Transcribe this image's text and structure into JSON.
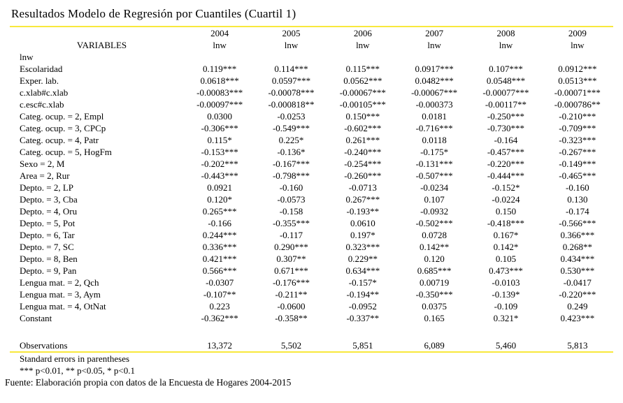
{
  "title": "Resultados Modelo de Regresión por Cuantiles (Cuartil 1)",
  "table": {
    "years": [
      "2004",
      "2005",
      "2006",
      "2007",
      "2008",
      "2009"
    ],
    "variables_header": "VARIABLES",
    "dep_var_label": "lnw",
    "group_label": "lnw",
    "rows": [
      {
        "label": "Escolaridad",
        "values": [
          "0.119***",
          "0.114***",
          "0.115***",
          "0.0917***",
          "0.107***",
          "0.0912***"
        ]
      },
      {
        "label": "Exper. lab.",
        "values": [
          "0.0618***",
          "0.0597***",
          "0.0562***",
          "0.0482***",
          "0.0548***",
          "0.0513***"
        ]
      },
      {
        "label": "c.xlab#c.xlab",
        "values": [
          "-0.00083***",
          "-0.00078***",
          "-0.00067***",
          "-0.00067***",
          "-0.00077***",
          "-0.00071***"
        ]
      },
      {
        "label": "c.esc#c.xlab",
        "values": [
          "-0.00097***",
          "-0.000818**",
          "-0.00105***",
          "-0.000373",
          "-0.00117**",
          "-0.000786**"
        ]
      },
      {
        "label": "Categ. ocup. = 2, Empl",
        "values": [
          "0.0300",
          "-0.0253",
          "0.150***",
          "0.0181",
          "-0.250***",
          "-0.210***"
        ]
      },
      {
        "label": "Categ. ocup. = 3, CPCp",
        "values": [
          "-0.306***",
          "-0.549***",
          "-0.602***",
          "-0.716***",
          "-0.730***",
          "-0.709***"
        ]
      },
      {
        "label": "Categ. ocup. = 4, Patr",
        "values": [
          "0.115*",
          "0.225*",
          "0.261***",
          "0.0118",
          "-0.164",
          "-0.323***"
        ]
      },
      {
        "label": "Categ. ocup. = 5, HogFm",
        "values": [
          "-0.153***",
          "-0.136*",
          "-0.240***",
          "-0.175*",
          "-0.457***",
          "-0.267***"
        ]
      },
      {
        "label": "Sexo = 2, M",
        "values": [
          "-0.202***",
          "-0.167***",
          "-0.254***",
          "-0.131***",
          "-0.220***",
          "-0.149***"
        ]
      },
      {
        "label": "Area = 2, Rur",
        "values": [
          "-0.443***",
          "-0.798***",
          "-0.260***",
          "-0.507***",
          "-0.444***",
          "-0.465***"
        ]
      },
      {
        "label": "Depto. = 2, LP",
        "values": [
          "0.0921",
          "-0.160",
          "-0.0713",
          "-0.0234",
          "-0.152*",
          "-0.160"
        ]
      },
      {
        "label": "Depto. = 3, Cba",
        "values": [
          "0.120*",
          "-0.0573",
          "0.267***",
          "0.107",
          "-0.0224",
          "0.130"
        ]
      },
      {
        "label": "Depto. = 4, Oru",
        "values": [
          "0.265***",
          "-0.158",
          "-0.193**",
          "-0.0932",
          "0.150",
          "-0.174"
        ]
      },
      {
        "label": "Depto. = 5, Pot",
        "values": [
          "-0.166",
          "-0.355***",
          "0.0610",
          "-0.502***",
          "-0.418***",
          "-0.566***"
        ]
      },
      {
        "label": "Depto. = 6, Tar",
        "values": [
          "0.244***",
          "-0.117",
          "0.197*",
          "0.0728",
          "0.167*",
          "0.366***"
        ]
      },
      {
        "label": "Depto. = 7, SC",
        "values": [
          "0.336***",
          "0.290***",
          "0.323***",
          "0.142**",
          "0.142*",
          "0.268**"
        ]
      },
      {
        "label": "Depto. = 8, Ben",
        "values": [
          "0.421***",
          "0.307**",
          "0.229**",
          "0.120",
          "0.105",
          "0.434***"
        ]
      },
      {
        "label": "Depto. = 9, Pan",
        "values": [
          "0.566***",
          "0.671***",
          "0.634***",
          "0.685***",
          "0.473***",
          "0.530***"
        ]
      },
      {
        "label": "Lengua mat. = 2, Qch",
        "values": [
          "-0.0307",
          "-0.176***",
          "-0.157*",
          "0.00719",
          "-0.0103",
          "-0.0417"
        ]
      },
      {
        "label": "Lengua mat. = 3, Aym",
        "values": [
          "-0.107**",
          "-0.211**",
          "-0.194**",
          "-0.350***",
          "-0.139*",
          "-0.220***"
        ]
      },
      {
        "label": "Lengua mat. = 4, OtNat",
        "values": [
          "0.223",
          "-0.0600",
          "-0.0952",
          "0.0375",
          "-0.109",
          "0.249"
        ]
      },
      {
        "label": "Constant",
        "values": [
          "-0.362***",
          "-0.358**",
          "-0.337**",
          "0.165",
          "0.321*",
          "0.423***"
        ]
      }
    ],
    "observations": {
      "label": "Observations",
      "values": [
        "13,372",
        "5,502",
        "5,851",
        "6,089",
        "5,460",
        "5,813"
      ]
    }
  },
  "notes": [
    "Standard errors in parentheses",
    "*** p<0.01, ** p<0.05, * p<0.1"
  ],
  "source": "Fuente: Elaboración propia con datos de la Encuesta de Hogares 2004-2015",
  "colors": {
    "rule": "#F8E83C",
    "text": "#000000",
    "background": "#FFFFFF"
  }
}
